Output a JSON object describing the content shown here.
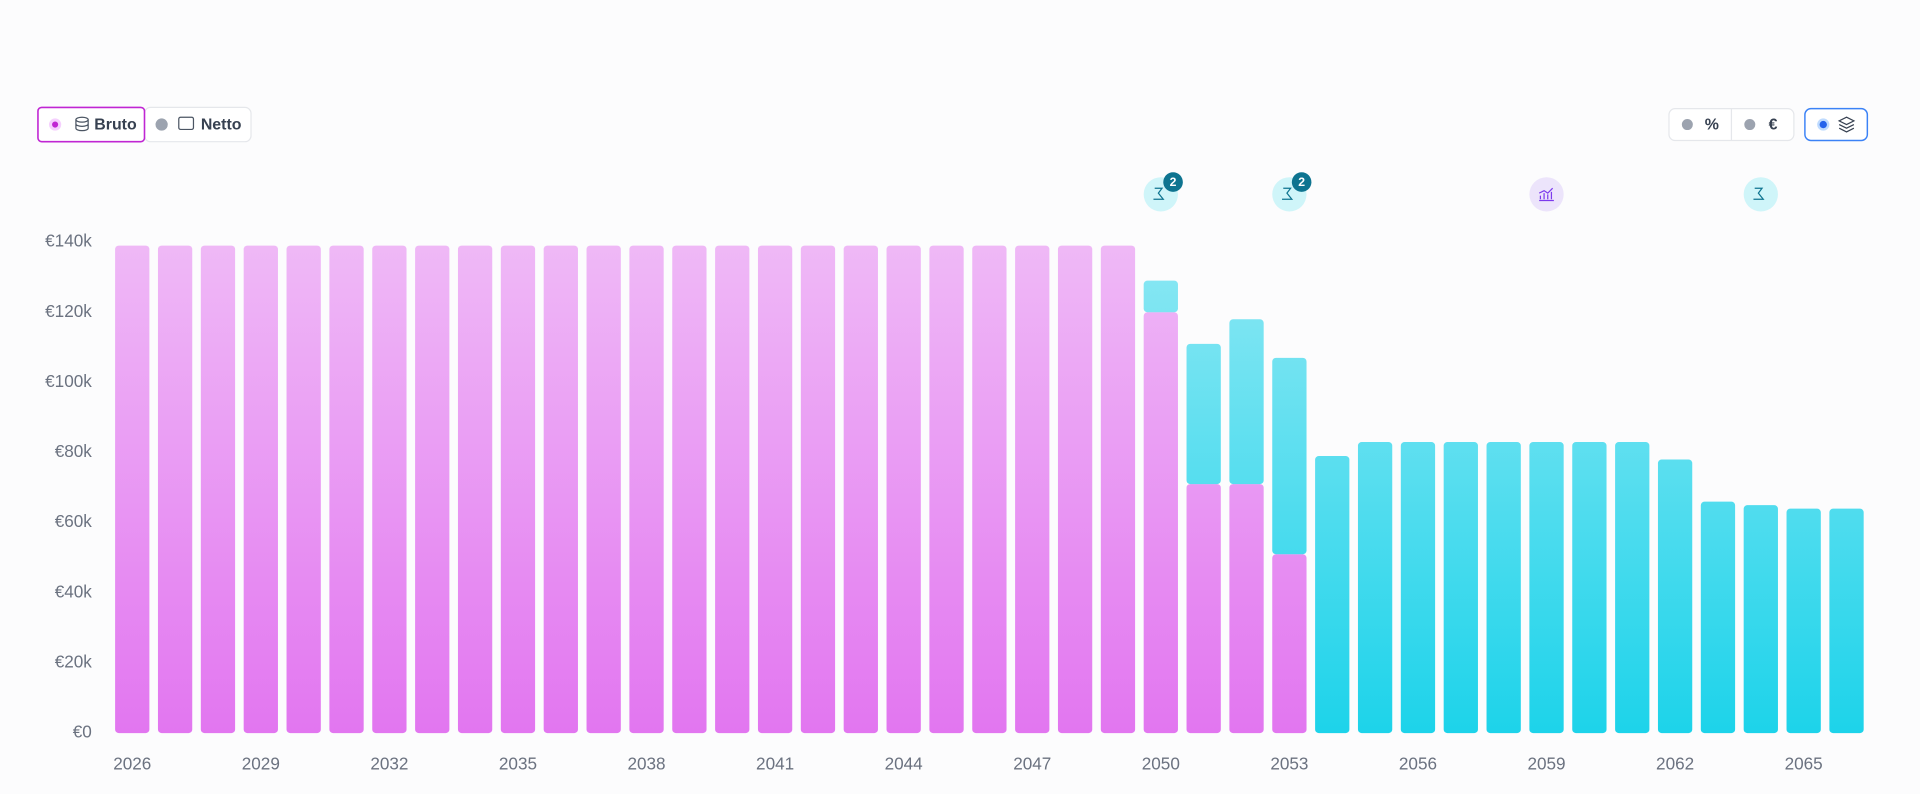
{
  "chart_data": {
    "type": "stacked_bar",
    "categories": [
      "2026",
      null,
      null,
      "2029",
      null,
      null,
      "2032",
      null,
      null,
      "2035",
      null,
      null,
      "2038",
      null,
      null,
      "2041",
      null,
      null,
      "2044",
      null,
      null,
      "2047",
      null,
      null,
      "2050",
      null,
      null,
      "2053",
      null,
      null,
      "2056",
      null,
      null,
      "2059",
      null,
      null,
      "2062",
      null,
      null,
      "2065",
      null
    ],
    "series": [
      {
        "color": "#e276f0",
        "values": [
          139000,
          139000,
          139000,
          139000,
          139000,
          139000,
          139000,
          139000,
          139000,
          139000,
          139000,
          139000,
          139000,
          139000,
          139000,
          139000,
          139000,
          139000,
          139000,
          139000,
          139000,
          139000,
          139000,
          139000,
          120000,
          71000,
          71000,
          51000,
          0,
          0,
          0,
          0,
          0,
          0,
          0,
          0,
          0,
          0,
          0,
          0,
          0
        ]
      },
      {
        "color": "#1dd3ea",
        "values": [
          0,
          0,
          0,
          0,
          0,
          0,
          0,
          0,
          0,
          0,
          0,
          0,
          0,
          0,
          0,
          0,
          0,
          0,
          0,
          0,
          0,
          0,
          0,
          0,
          9000,
          40000,
          47000,
          56000,
          79000,
          83000,
          83000,
          83000,
          83000,
          83000,
          83000,
          83000,
          78000,
          66000,
          65000,
          64000,
          64000
        ]
      }
    ],
    "ylim": [
      0,
      140000
    ],
    "yticks": [
      {
        "value": 0,
        "label": "€0"
      },
      {
        "value": 20000,
        "label": "€20k"
      },
      {
        "value": 40000,
        "label": "€40k"
      },
      {
        "value": 60000,
        "label": "€60k"
      },
      {
        "value": 80000,
        "label": "€80k"
      },
      {
        "value": 100000,
        "label": "€100k"
      },
      {
        "value": 120000,
        "label": "€120k"
      },
      {
        "value": 140000,
        "label": "€140k"
      }
    ],
    "grid": false
  },
  "controls": {
    "bruto": "Bruto",
    "netto": "Netto",
    "percent": "%",
    "euro": "€"
  },
  "event_badges": [
    "2",
    "2"
  ]
}
